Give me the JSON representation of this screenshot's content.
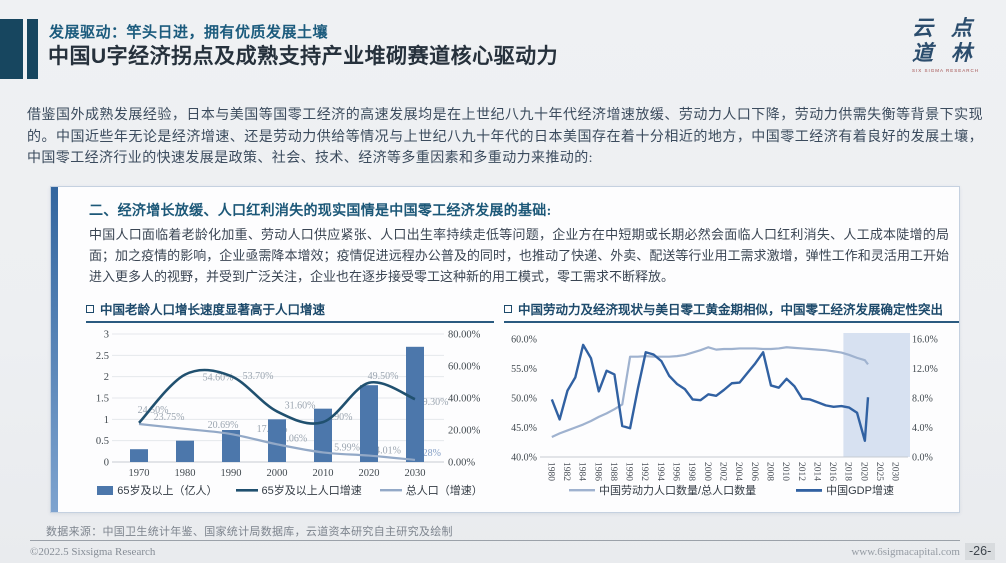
{
  "header": {
    "subtitle": "发展驱动：竿头日进，拥有优质发展土壤",
    "title": "中国U字经济拐点及成熟支持产业堆砌赛道核心驱动力",
    "logo_char1": "云",
    "logo_char2": "点",
    "logo_char3": "道",
    "logo_char4": "林",
    "logo_sub": "SIX SIGMA RESEARCH"
  },
  "intro": "借鉴国外成熟发展经验，日本与美国等国零工经济的高速发展均是在上世纪八九十年代经济增速放缓、劳动力人口下降，劳动力供需失衡等背景下实现的。中国近些年无论是经济增速、还是劳动力供给等情况与上世纪八九十年代的日本美国存在着十分相近的地方，中国零工经济有着良好的发展土壤，中国零工经济行业的快速发展是政策、社会、技术、经济等多重因素和多重动力来推动的:",
  "panel": {
    "heading": "二、经济增长放缓、人口红利消失的现实国情是中国零工经济发展的基础:",
    "body": "中国人口面临着老龄化加重、劳动人口供应紧张、人口出生率持续走低等问题，企业方在中短期或长期必然会面临人口红利消失、人工成本陡增的局面；加之疫情的影响，企业亟需降本增效；疫情促进远程办公普及的同时，也推动了快递、外卖、配送等行业用工需求激增，弹性工作和灵活用工开始进入更多人的视野，并受到广泛关注，企业也在逐步接受零工这种新的用工模式，零工需求不断释放。"
  },
  "chart_data": [
    {
      "type": "bar",
      "title": "中国老龄人口增长速度显著高于人口增速",
      "categories": [
        "1970",
        "1980",
        "1990",
        "2000",
        "2010",
        "2020",
        "2030"
      ],
      "left_axis": {
        "min": 0,
        "max": 3,
        "ticks": [
          "0",
          "0.5",
          "1",
          "1.5",
          "2",
          "2.5",
          "3"
        ]
      },
      "right_axis": {
        "min": 0,
        "max": 80,
        "ticks": [
          "0.00%",
          "20.00%",
          "40.00%",
          "60.00%",
          "80.00%"
        ]
      },
      "series": [
        {
          "name": "65岁及以上（亿人）",
          "kind": "bar",
          "axis": "left",
          "color": "#4c77ab",
          "values": [
            0.3,
            0.5,
            0.75,
            1.0,
            1.25,
            1.8,
            2.7
          ]
        },
        {
          "name": "65岁及以上人口增速",
          "kind": "line",
          "axis": "right",
          "color": "#20506f",
          "values": [
            24.5,
            54.6,
            53.7,
            31.6,
            24.9,
            49.5,
            39.3
          ],
          "labels": [
            "24.50%",
            "54.60%",
            "53.70%",
            "31.60%",
            "24.90%",
            "49.50%",
            "39.30%"
          ]
        },
        {
          "name": "总人口（增速）",
          "kind": "line",
          "axis": "right",
          "color": "#93a9c7",
          "values": [
            23.75,
            20.69,
            17.48,
            11.06,
            5.99,
            4.01,
            1.28
          ],
          "labels": [
            "23.75%",
            "20.69%",
            "17.48%",
            "11.06%",
            "5.99%",
            "4.01%",
            "1.28%"
          ]
        }
      ],
      "label_color": "#9ba5b0",
      "label_color_last": "#86a0c6"
    },
    {
      "type": "line",
      "title": "中国劳动力及经济现状与美日零工黄金期相似，中国零工经济发展确定性突出",
      "x_ticks": [
        "1980",
        "1982",
        "1984",
        "1986",
        "1988",
        "1990",
        "1992",
        "1994",
        "1996",
        "1998",
        "2000",
        "2002",
        "2004",
        "2006",
        "2008",
        "2010",
        "2012",
        "2014",
        "2016",
        "2018",
        "2020",
        "2025",
        "2030"
      ],
      "left_axis": {
        "min": 40,
        "max": 60,
        "ticks": [
          "40.0%",
          "45.0%",
          "50.0%",
          "55.0%",
          "60.0%"
        ]
      },
      "right_axis": {
        "min": 0,
        "max": 16,
        "ticks": [
          "0.0%",
          "4.0%",
          "8.0%",
          "12.0%",
          "16.0%"
        ]
      },
      "forecast_band": {
        "from_year": 2017,
        "to_year": 2030,
        "color": "#cdd9ed"
      },
      "series": [
        {
          "name": "中国劳动力人口数量/总人口数量",
          "axis": "left",
          "color": "#9fb2cf",
          "years": [
            1980,
            1981,
            1982,
            1983,
            1984,
            1985,
            1986,
            1987,
            1988,
            1989,
            1990,
            1991,
            1992,
            1993,
            1994,
            1995,
            1996,
            1997,
            1998,
            1999,
            2000,
            2001,
            2002,
            2003,
            2004,
            2005,
            2006,
            2007,
            2008,
            2009,
            2010,
            2011,
            2012,
            2013,
            2014,
            2015,
            2016,
            2017,
            2018,
            2019,
            2020,
            2021
          ],
          "values": [
            43.4,
            44.0,
            44.5,
            45.0,
            45.5,
            46.1,
            46.8,
            47.4,
            48.1,
            48.9,
            57.0,
            57.0,
            57.1,
            57.0,
            57.0,
            57.0,
            57.1,
            57.3,
            57.7,
            58.1,
            58.6,
            58.2,
            58.3,
            58.3,
            58.4,
            58.4,
            58.4,
            58.3,
            58.3,
            58.4,
            58.6,
            58.5,
            58.4,
            58.3,
            58.2,
            58.1,
            57.9,
            57.7,
            57.3,
            56.8,
            56.4,
            55.7
          ]
        },
        {
          "name": "中国GDP增速",
          "axis": "right",
          "color": "#3161a2",
          "years": [
            1980,
            1981,
            1982,
            1983,
            1984,
            1985,
            1986,
            1987,
            1988,
            1989,
            1990,
            1991,
            1992,
            1993,
            1994,
            1995,
            1996,
            1997,
            1998,
            1999,
            2000,
            2001,
            2002,
            2003,
            2004,
            2005,
            2006,
            2007,
            2008,
            2009,
            2010,
            2011,
            2012,
            2013,
            2014,
            2015,
            2016,
            2017,
            2018,
            2019,
            2020,
            2021
          ],
          "values": [
            7.8,
            5.1,
            9.0,
            10.8,
            15.2,
            13.4,
            8.9,
            11.7,
            11.2,
            4.2,
            3.9,
            9.3,
            14.2,
            13.9,
            13.0,
            11.0,
            9.9,
            9.2,
            7.8,
            7.7,
            8.5,
            8.3,
            9.1,
            10.0,
            10.1,
            11.4,
            12.7,
            14.2,
            9.7,
            9.4,
            10.6,
            9.6,
            7.9,
            7.8,
            7.4,
            7.0,
            6.8,
            6.9,
            6.7,
            6.0,
            2.2,
            8.1
          ]
        }
      ]
    }
  ],
  "footer": {
    "source": "数据来源：中国卫生统计年鉴、国家统计局数据库，云道资本研究自主研究及绘制",
    "copyright": "©2022.5 Sixsigma Research",
    "site": "www.6sigmacapital.com",
    "page": "-26-"
  },
  "colors": {
    "accent_navy": "#17465f",
    "heading_teal": "#1b5b7d",
    "chart_title": "#1d4a6b"
  }
}
